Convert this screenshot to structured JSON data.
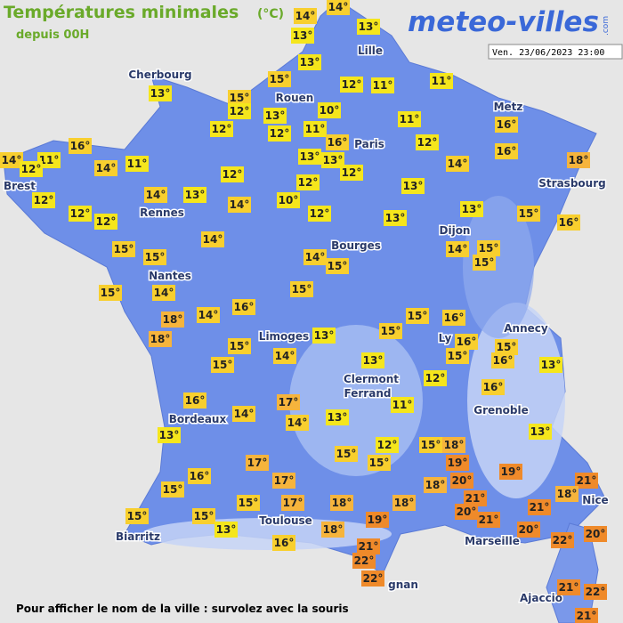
{
  "header": {
    "title": "Températures minimales",
    "unit": "(°C)",
    "subtitle": "depuis 00H",
    "logo": "meteo-villes",
    "logo_suffix": ".com",
    "timestamp": "Ven. 23/06/2023 23:00"
  },
  "cities": [
    "Cherbourg",
    "Lille",
    "Rouen",
    "Paris",
    "Metz",
    "Brest",
    "Rennes",
    "Strasbourg",
    "Nantes",
    "Dijon",
    "Bourges",
    "Limoges",
    "Annecy",
    "Ly",
    "Clermont",
    "Ferrand",
    "Grenoble",
    "Bordeaux",
    "Nice",
    "Toulouse",
    "Biarritz",
    "Marseille",
    "gnan",
    "Ajaccio"
  ],
  "temperatures": [
    "14°",
    "14°",
    "13°",
    "13°",
    "13°",
    "15°",
    "12°",
    "11°",
    "11°",
    "13°",
    "15°",
    "12°",
    "13°",
    "10°",
    "11°",
    "12°",
    "12°",
    "11°",
    "16°",
    "12°",
    "16°",
    "16°",
    "16°",
    "14°",
    "11°",
    "12°",
    "14°",
    "11°",
    "13°",
    "13°",
    "12°",
    "14°",
    "18°",
    "12°",
    "12°",
    "13°",
    "12°",
    "14°",
    "13°",
    "14°",
    "10°",
    "12°",
    "12°",
    "12°",
    "13°",
    "13°",
    "15°",
    "16°",
    "14°",
    "15°",
    "15°",
    "14°",
    "15°",
    "14°",
    "15°",
    "15°",
    "15°",
    "14°",
    "15°",
    "16°",
    "15°",
    "16°",
    "18°",
    "14°",
    "13°",
    "15°",
    "16°",
    "15°",
    "18°",
    "15°",
    "14°",
    "15°",
    "16°",
    "13°",
    "15°",
    "13°",
    "12°",
    "16°",
    "16°",
    "17°",
    "11°",
    "14°",
    "14°",
    "13°",
    "13°",
    "13°",
    "12°",
    "15°",
    "18°",
    "15°",
    "15°",
    "19°",
    "17°",
    "19°",
    "16°",
    "17°",
    "20°",
    "18°",
    "21°",
    "15°",
    "18°",
    "15°",
    "17°",
    "18°",
    "18°",
    "21°",
    "20°",
    "21°",
    "21°",
    "15°",
    "15°",
    "19°",
    "13°",
    "18°",
    "20°",
    "22°",
    "20°",
    "16°",
    "21°",
    "22°",
    "22°",
    "21°",
    "22°",
    "21°"
  ],
  "footer": "Pour afficher le nom de la ville : survolez avec la souris"
}
